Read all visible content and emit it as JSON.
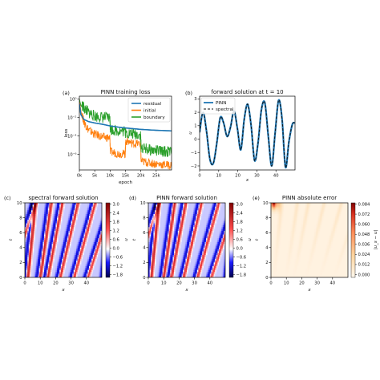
{
  "figure": {
    "panels": [
      {
        "label": "(a)",
        "title": "PINN training loss"
      },
      {
        "label": "(b)",
        "title": "forward solution at t = 10"
      },
      {
        "label": "(c)",
        "title": "spectral forward solution"
      },
      {
        "label": "(d)",
        "title": "PINN forward solution"
      },
      {
        "label": "(e)",
        "title": "PINN absolute error"
      }
    ]
  },
  "chart_data": [
    {
      "type": "line",
      "title": "PINN training loss",
      "xlabel": "epoch",
      "ylabel": "loss",
      "xscale": "linear",
      "yscale": "log",
      "xlim": [
        0,
        30000
      ],
      "ylim": [
        2e-08,
        2
      ],
      "xticks": [
        0,
        5000,
        10000,
        15000,
        20000,
        25000
      ],
      "xticklabels": [
        "0k",
        "5k",
        "10k",
        "15k",
        "20k",
        "25k"
      ],
      "yticks": [
        1,
        0.01,
        0.0001,
        1e-06
      ],
      "yticklabels": [
        "10⁰",
        "10⁻²",
        "10⁻⁴",
        "10⁻⁶"
      ],
      "legend_position": "top-right",
      "series": [
        {
          "name": "residual",
          "color": "#1f77b4",
          "x": [
            0,
            500,
            1500,
            3000,
            5000,
            7500,
            10000,
            12500,
            15000,
            17500,
            20000,
            22500,
            25000,
            27500,
            30000
          ],
          "y": [
            0.3,
            0.02,
            0.006,
            0.0035,
            0.0025,
            0.0018,
            0.0012,
            0.0009,
            0.00072,
            0.0006,
            0.0005,
            0.00045,
            0.0004,
            0.00037,
            0.00035
          ]
        },
        {
          "name": "initial",
          "color": "#ff7f0e",
          "x": [
            0,
            500,
            1500,
            3000,
            5000,
            7500,
            9900,
            10100,
            12500,
            14900,
            15100,
            17500,
            19900,
            20100,
            22500,
            25000,
            27500,
            30000
          ],
          "y": [
            1.0,
            0.05,
            0.002,
            0.0003,
            0.0001,
            5e-05,
            4e-05,
            1.2e-06,
            8e-07,
            7e-07,
            2e-05,
            1e-05,
            9e-06,
            1.2e-07,
            8e-08,
            6e-08,
            5e-08,
            4e-08
          ]
        },
        {
          "name": "boundary",
          "color": "#2ca02c",
          "x": [
            0,
            500,
            1500,
            3000,
            5000,
            7500,
            9900,
            10100,
            12500,
            14900,
            15100,
            17500,
            19900,
            20100,
            22500,
            25000,
            27500,
            30000
          ],
          "y": [
            1.0,
            0.2,
            0.06,
            0.02,
            0.008,
            0.006,
            0.005,
            0.0003,
            0.0002,
            0.00018,
            0.00012,
            9e-05,
            8e-05,
            3e-06,
            1.8e-06,
            1.4e-06,
            1.2e-06,
            1e-06
          ]
        }
      ]
    },
    {
      "type": "line",
      "title": "forward solution at t = 10",
      "xlabel": "x",
      "ylabel": "u",
      "xlim": [
        0,
        50
      ],
      "ylim": [
        -2.3,
        3.2
      ],
      "xticks": [
        0,
        10,
        20,
        30,
        40
      ],
      "yticks": [
        -2,
        -1,
        0,
        1,
        2,
        3
      ],
      "legend_position": "top-left",
      "series": [
        {
          "name": "PINN",
          "color": "#1f77b4",
          "x": [
            0,
            1.8,
            3.6,
            5.4,
            7.2,
            9.0,
            10.8,
            12.6,
            14.4,
            16.2,
            18.0,
            19.8,
            21.6,
            23.4,
            25.2,
            27.0,
            28.8,
            30.6,
            32.4,
            34.2,
            36.0,
            37.8,
            39.6,
            41.4,
            43.2,
            45.0,
            46.8,
            48.6,
            50.0
          ],
          "y": [
            0.5,
            2.0,
            0.6,
            -1.5,
            -1.8,
            -0.3,
            1.6,
            1.2,
            0.2,
            0.9,
            2.1,
            0.8,
            -0.8,
            1.5,
            2.6,
            1.0,
            -1.6,
            -0.3,
            2.2,
            2.7,
            0.2,
            -2.0,
            0.5,
            2.9,
            1.5,
            -2.1,
            -0.2,
            1.1,
            1.2
          ]
        },
        {
          "name": "spectral",
          "color": "#111111",
          "dash": true,
          "x": [
            0,
            1.8,
            3.6,
            5.4,
            7.2,
            9.0,
            10.8,
            12.6,
            14.4,
            16.2,
            18.0,
            19.8,
            21.6,
            23.4,
            25.2,
            27.0,
            28.8,
            30.6,
            32.4,
            34.2,
            36.0,
            37.8,
            39.6,
            41.4,
            43.2,
            45.0,
            46.8,
            48.6,
            50.0
          ],
          "y": [
            0.5,
            2.0,
            0.6,
            -1.5,
            -1.8,
            -0.3,
            1.6,
            1.2,
            0.2,
            0.9,
            2.1,
            0.8,
            -0.8,
            1.5,
            2.6,
            1.0,
            -1.6,
            -0.3,
            2.2,
            2.7,
            0.2,
            -2.0,
            0.5,
            2.9,
            1.5,
            -2.1,
            -0.2,
            1.1,
            1.2
          ]
        }
      ]
    },
    {
      "type": "heatmap",
      "title": "spectral forward solution",
      "xlabel": "x",
      "ylabel": "t",
      "xlim": [
        0,
        50
      ],
      "ylim": [
        0,
        10
      ],
      "xticks": [
        0,
        10,
        20,
        30,
        40
      ],
      "yticks": [
        0,
        2,
        4,
        6,
        8,
        10
      ],
      "colormap": "seismic",
      "colorbar": {
        "label": "u",
        "ticks": [
          "3.0",
          "2.4",
          "1.8",
          "1.2",
          "0.6",
          "0.0",
          "−0.6",
          "−1.2",
          "−1.8"
        ],
        "range": [
          -2.1,
          3.1
        ]
      },
      "field": "waves tilting right: ridges start near x = 2, 10, 15, 23, 32, 41 at t = 0 and drift with increasing speed"
    },
    {
      "type": "heatmap",
      "title": "PINN forward solution",
      "xlabel": "x",
      "ylabel": "t",
      "xlim": [
        0,
        50
      ],
      "ylim": [
        0,
        10
      ],
      "xticks": [
        0,
        10,
        20,
        30,
        40
      ],
      "yticks": [
        0,
        2,
        4,
        6,
        8,
        10
      ],
      "colormap": "seismic",
      "colorbar": {
        "label": "u",
        "ticks": [
          "3.0",
          "2.4",
          "1.8",
          "1.2",
          "0.6",
          "0.0",
          "−0.6",
          "−1.2",
          "−1.8"
        ],
        "range": [
          -2.1,
          3.1
        ]
      }
    },
    {
      "type": "heatmap",
      "title": "PINN absolute error",
      "xlabel": "x",
      "ylabel": "t",
      "xlim": [
        0,
        50
      ],
      "ylim": [
        0,
        10
      ],
      "xticks": [
        0,
        10,
        20,
        30,
        40
      ],
      "yticks": [
        0,
        2,
        4,
        6,
        8,
        10
      ],
      "colormap": "OrRd",
      "colorbar": {
        "label": "|u_s − u|",
        "ticks": [
          "0.084",
          "0.072",
          "0.060",
          "0.048",
          "0.036",
          "0.024",
          "0.012",
          "0.000"
        ],
        "range": [
          0,
          0.09
        ]
      }
    }
  ]
}
